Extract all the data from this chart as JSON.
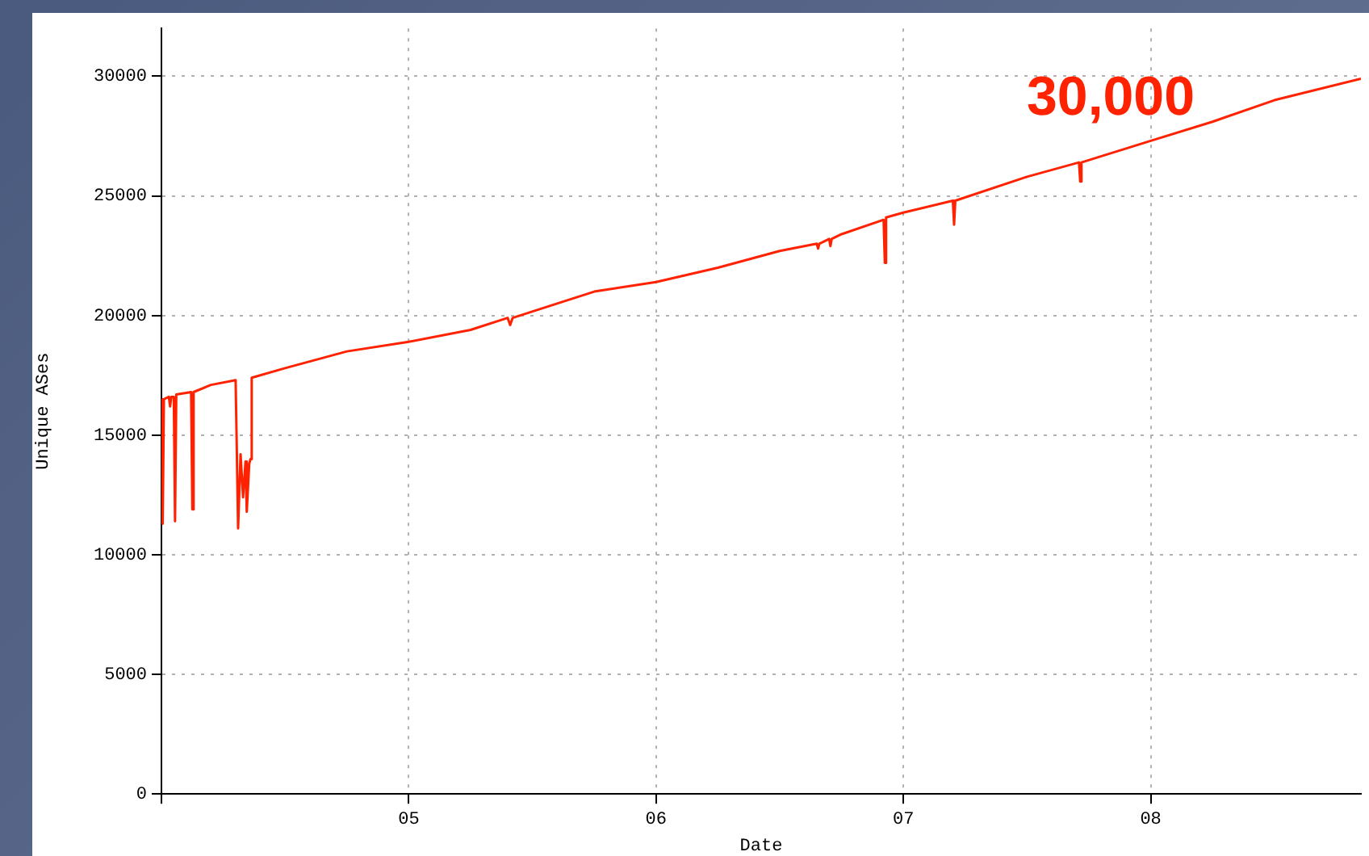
{
  "chart_data": {
    "type": "line",
    "xlabel": "Date",
    "ylabel": "Unique ASes",
    "annotations": [
      "30,000"
    ],
    "x": [
      2004.0,
      2004.005,
      2004.01,
      2004.03,
      2004.035,
      2004.04,
      2004.05,
      2004.055,
      2004.06,
      2004.12,
      2004.125,
      2004.13,
      2004.2,
      2004.3,
      2004.31,
      2004.32,
      2004.33,
      2004.34,
      2004.345,
      2004.355,
      2004.36,
      2004.365,
      2004.5,
      2004.75,
      2005.0,
      2005.25,
      2005.4,
      2005.41,
      2005.42,
      2005.6,
      2005.75,
      2006.0,
      2006.25,
      2006.5,
      2006.65,
      2006.655,
      2006.66,
      2006.7,
      2006.705,
      2006.71,
      2006.75,
      2006.92,
      2006.925,
      2006.93,
      2007.0,
      2007.2,
      2007.205,
      2007.21,
      2007.5,
      2007.71,
      2007.715,
      2007.72,
      2008.0,
      2008.25,
      2008.5,
      2008.85
    ],
    "series": [
      {
        "color": "#ff2200",
        "values": [
          16500,
          11300,
          16500,
          16600,
          16200,
          16600,
          16600,
          11400,
          16700,
          16800,
          11900,
          16800,
          17100,
          17300,
          11100,
          14200,
          12400,
          13900,
          11800,
          13800,
          14000,
          17400,
          17800,
          18500,
          18900,
          19400,
          19900,
          19600,
          19900,
          20500,
          21000,
          21400,
          22000,
          22700,
          23000,
          22800,
          23000,
          23200,
          22900,
          23200,
          23400,
          24000,
          22200,
          24100,
          24300,
          24800,
          23800,
          24800,
          25800,
          26400,
          25600,
          26400,
          27300,
          28100,
          29000,
          29900
        ]
      }
    ],
    "xlim": [
      2004.0,
      2008.85
    ],
    "xticks": [
      {
        "value": 2004,
        "label": null
      },
      {
        "value": 2005,
        "label": "05"
      },
      {
        "value": 2006,
        "label": "06"
      },
      {
        "value": 2007,
        "label": "07"
      },
      {
        "value": 2008,
        "label": "08"
      }
    ],
    "ylim": [
      0,
      32000
    ],
    "yticks": [
      0,
      5000,
      10000,
      15000,
      20000,
      25000,
      30000
    ],
    "grid": true,
    "legend": false,
    "marker": "none",
    "line_style": "solid"
  }
}
